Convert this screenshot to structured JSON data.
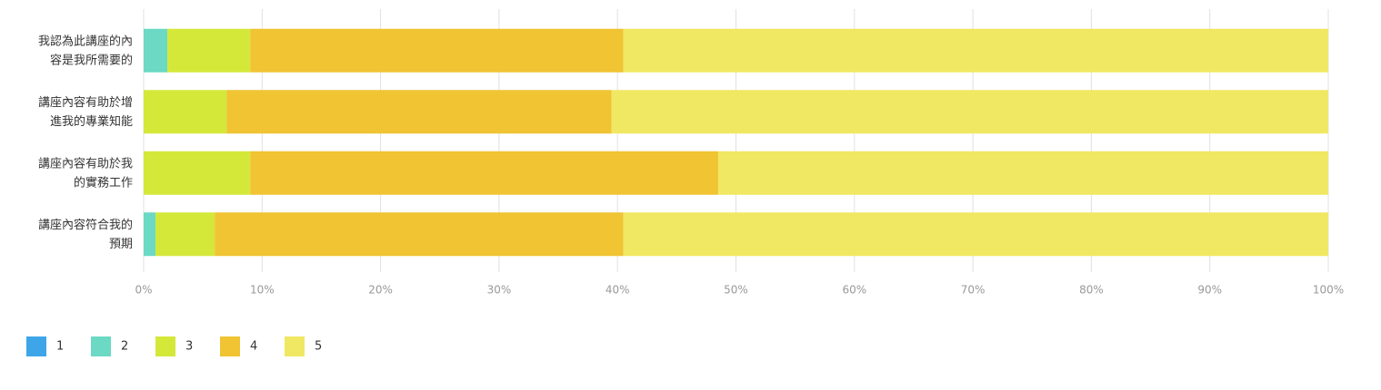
{
  "chart_data": {
    "type": "stacked_barh",
    "categories": [
      "我認為此講座的內容是我所需要的",
      "講座內容有助於增進我的專業知能",
      "講座內容有助於我的實務工作",
      "講座內容符合我的預期"
    ],
    "series": [
      {
        "name": "1",
        "color": "#3ea6e8",
        "values": [
          0,
          0,
          0,
          0
        ]
      },
      {
        "name": "2",
        "color": "#6bd9c4",
        "values": [
          2,
          0,
          0,
          1
        ]
      },
      {
        "name": "3",
        "color": "#d4e83a",
        "values": [
          7,
          7,
          9,
          5
        ]
      },
      {
        "name": "4",
        "color": "#f0c432",
        "values": [
          31.5,
          32.5,
          39.5,
          34.5
        ]
      },
      {
        "name": "5",
        "color": "#f0e862",
        "values": [
          59.5,
          60.5,
          51.5,
          59.5
        ]
      }
    ],
    "xlim": [
      0,
      100
    ],
    "xticks": [
      {
        "value": 0,
        "label": "0%"
      },
      {
        "value": 10,
        "label": "10%"
      },
      {
        "value": 20,
        "label": "20%"
      },
      {
        "value": 30,
        "label": "30%"
      },
      {
        "value": 40,
        "label": "40%"
      },
      {
        "value": 50,
        "label": "50%"
      },
      {
        "value": 60,
        "label": "60%"
      },
      {
        "value": 70,
        "label": "70%"
      },
      {
        "value": 80,
        "label": "80%"
      },
      {
        "value": 90,
        "label": "90%"
      },
      {
        "value": 100,
        "label": "100%"
      }
    ],
    "grid": true,
    "legend": "bottom-left"
  }
}
